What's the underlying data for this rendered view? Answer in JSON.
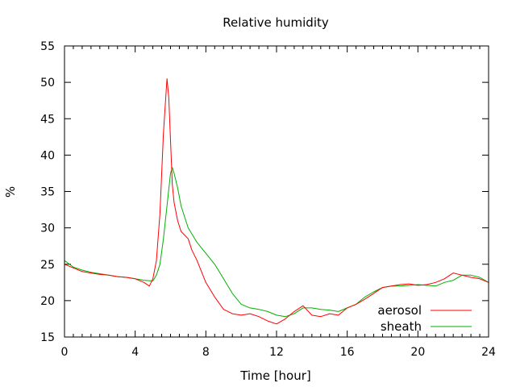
{
  "chart_data": {
    "type": "line",
    "title": "Relative humidity",
    "xlabel": "Time [hour]",
    "ylabel": "%",
    "xlim": [
      0,
      24
    ],
    "ylim": [
      15,
      55
    ],
    "xticks": [
      0,
      4,
      8,
      12,
      16,
      20,
      24
    ],
    "yticks": [
      15,
      20,
      25,
      30,
      35,
      40,
      45,
      50,
      55
    ],
    "grid": false,
    "legend_position": "bottom-right",
    "series": [
      {
        "name": "aerosol",
        "color": "#ff0000",
        "x": [
          0,
          0.5,
          1,
          1.5,
          2,
          2.5,
          3,
          3.5,
          4,
          4.5,
          4.8,
          5,
          5.2,
          5.4,
          5.6,
          5.8,
          5.9,
          6.0,
          6.1,
          6.2,
          6.4,
          6.6,
          6.8,
          7.0,
          7.2,
          7.5,
          8.0,
          8.5,
          9.0,
          9.5,
          10.0,
          10.5,
          11.0,
          11.5,
          12.0,
          12.5,
          13.0,
          13.5,
          14.0,
          14.5,
          15.0,
          15.5,
          16.0,
          16.5,
          17.0,
          17.5,
          18.0,
          18.5,
          19.0,
          19.5,
          20.0,
          20.5,
          21.0,
          21.5,
          22.0,
          22.5,
          23.0,
          23.5,
          24.0
        ],
        "y": [
          25.0,
          24.5,
          24.0,
          23.8,
          23.6,
          23.5,
          23.3,
          23.2,
          23.0,
          22.5,
          22.0,
          23.0,
          25.5,
          32.0,
          43.0,
          50.5,
          48.0,
          42.0,
          36.0,
          33.5,
          31.0,
          29.5,
          29.0,
          28.5,
          27.0,
          25.5,
          22.5,
          20.5,
          18.8,
          18.2,
          18.0,
          18.2,
          17.8,
          17.2,
          16.8,
          17.5,
          18.5,
          19.3,
          18.0,
          17.8,
          18.2,
          18.0,
          19.0,
          19.5,
          20.2,
          21.0,
          21.8,
          22.0,
          22.2,
          22.3,
          22.1,
          22.2,
          22.5,
          23.0,
          23.8,
          23.5,
          23.2,
          23.0,
          22.5
        ]
      },
      {
        "name": "sheath",
        "color": "#00b000",
        "x": [
          0,
          0.5,
          1,
          1.5,
          2,
          2.5,
          3,
          3.5,
          4,
          4.5,
          5.0,
          5.2,
          5.4,
          5.6,
          5.8,
          6.0,
          6.1,
          6.2,
          6.4,
          6.6,
          6.8,
          7.0,
          7.5,
          8.0,
          8.5,
          9.0,
          9.5,
          10.0,
          10.5,
          11.0,
          11.5,
          12.0,
          12.5,
          13.0,
          13.5,
          14.0,
          14.5,
          15.0,
          15.5,
          16.0,
          16.5,
          17.0,
          17.5,
          18.0,
          18.5,
          19.0,
          19.5,
          20.0,
          20.5,
          21.0,
          21.5,
          22.0,
          22.5,
          23.0,
          23.5,
          24.0
        ],
        "y": [
          25.5,
          24.6,
          24.2,
          23.9,
          23.7,
          23.5,
          23.3,
          23.2,
          23.0,
          22.8,
          22.7,
          23.5,
          25.0,
          28.5,
          33.0,
          37.5,
          38.3,
          37.5,
          35.5,
          33.0,
          31.5,
          30.0,
          28.0,
          26.5,
          25.0,
          23.0,
          21.0,
          19.5,
          19.0,
          18.8,
          18.5,
          18.0,
          17.8,
          18.2,
          19.0,
          19.0,
          18.8,
          18.7,
          18.5,
          19.0,
          19.5,
          20.5,
          21.2,
          21.8,
          22.0,
          22.0,
          22.1,
          22.2,
          22.1,
          22.0,
          22.5,
          22.8,
          23.5,
          23.5,
          23.2,
          22.5
        ]
      }
    ]
  }
}
